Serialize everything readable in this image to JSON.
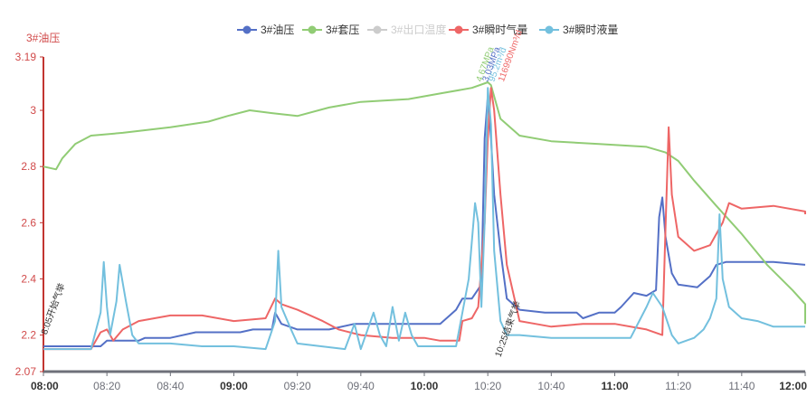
{
  "chart_data": {
    "type": "line",
    "ylabel": "3#油压",
    "ylim": [
      2.07,
      3.19
    ],
    "y_ticks": [
      "3.19",
      "3",
      "2.8",
      "2.6",
      "2.4",
      "2.2",
      "2.07"
    ],
    "x_ticks": [
      "08:00",
      "08:20",
      "08:40",
      "09:00",
      "09:20",
      "09:40",
      "10:00",
      "10:20",
      "10:40",
      "11:00",
      "11:20",
      "11:40",
      "12:00"
    ],
    "x_ticks_bold": [
      "08:00",
      "09:00",
      "10:00",
      "11:00",
      "12:00"
    ],
    "legend_position": "top-center",
    "grid": false,
    "series": [
      {
        "name": "3#油压",
        "color": "#5470c6",
        "enabled": true,
        "points": [
          [
            0,
            2.16
          ],
          [
            10,
            2.16
          ],
          [
            18,
            2.16
          ],
          [
            20,
            2.18
          ],
          [
            30,
            2.18
          ],
          [
            32,
            2.19
          ],
          [
            40,
            2.19
          ],
          [
            48,
            2.21
          ],
          [
            62,
            2.21
          ],
          [
            66,
            2.22
          ],
          [
            72,
            2.22
          ],
          [
            73,
            2.28
          ],
          [
            75,
            2.24
          ],
          [
            80,
            2.22
          ],
          [
            90,
            2.22
          ],
          [
            98,
            2.24
          ],
          [
            105,
            2.24
          ],
          [
            115,
            2.24
          ],
          [
            125,
            2.24
          ],
          [
            128,
            2.27
          ],
          [
            130,
            2.29
          ],
          [
            132,
            2.33
          ],
          [
            135,
            2.33
          ],
          [
            138,
            2.38
          ],
          [
            139,
            2.9
          ],
          [
            140,
            3.05
          ],
          [
            141,
            2.9
          ],
          [
            142,
            2.7
          ],
          [
            144,
            2.5
          ],
          [
            146,
            2.33
          ],
          [
            150,
            2.29
          ],
          [
            158,
            2.28
          ],
          [
            168,
            2.28
          ],
          [
            170,
            2.26
          ],
          [
            175,
            2.28
          ],
          [
            180,
            2.28
          ],
          [
            182,
            2.3
          ],
          [
            186,
            2.35
          ],
          [
            190,
            2.34
          ],
          [
            193,
            2.36
          ],
          [
            194,
            2.62
          ],
          [
            195,
            2.69
          ],
          [
            196,
            2.55
          ],
          [
            198,
            2.42
          ],
          [
            200,
            2.38
          ],
          [
            206,
            2.37
          ],
          [
            208,
            2.39
          ],
          [
            210,
            2.41
          ],
          [
            212,
            2.45
          ],
          [
            215,
            2.46
          ],
          [
            230,
            2.46
          ],
          [
            245,
            2.45
          ],
          [
            250,
            2.45
          ]
        ]
      },
      {
        "name": "3#套压",
        "color": "#91cc75",
        "enabled": true,
        "points": [
          [
            0,
            2.8
          ],
          [
            4,
            2.79
          ],
          [
            6,
            2.83
          ],
          [
            10,
            2.88
          ],
          [
            15,
            2.91
          ],
          [
            25,
            2.92
          ],
          [
            40,
            2.94
          ],
          [
            52,
            2.96
          ],
          [
            58,
            2.98
          ],
          [
            65,
            3.0
          ],
          [
            72,
            2.99
          ],
          [
            80,
            2.98
          ],
          [
            90,
            3.01
          ],
          [
            100,
            3.03
          ],
          [
            115,
            3.04
          ],
          [
            125,
            3.06
          ],
          [
            135,
            3.08
          ],
          [
            140,
            3.1
          ],
          [
            141,
            3.09
          ],
          [
            144,
            2.97
          ],
          [
            150,
            2.91
          ],
          [
            160,
            2.89
          ],
          [
            175,
            2.88
          ],
          [
            190,
            2.87
          ],
          [
            196,
            2.85
          ],
          [
            200,
            2.82
          ],
          [
            205,
            2.75
          ],
          [
            212,
            2.66
          ],
          [
            220,
            2.56
          ],
          [
            228,
            2.45
          ],
          [
            236,
            2.36
          ],
          [
            242,
            2.31
          ],
          [
            248,
            2.25
          ],
          [
            250,
            2.24
          ]
        ]
      },
      {
        "name": "3#出口温度",
        "color": "#cccccc",
        "enabled": false,
        "points": []
      },
      {
        "name": "3#瞬时气量",
        "color": "#ee6666",
        "enabled": true,
        "points": [
          [
            0,
            2.15
          ],
          [
            15,
            2.15
          ],
          [
            18,
            2.21
          ],
          [
            20,
            2.22
          ],
          [
            22,
            2.18
          ],
          [
            25,
            2.22
          ],
          [
            30,
            2.25
          ],
          [
            40,
            2.27
          ],
          [
            50,
            2.27
          ],
          [
            60,
            2.25
          ],
          [
            70,
            2.26
          ],
          [
            73,
            2.33
          ],
          [
            75,
            2.31
          ],
          [
            80,
            2.29
          ],
          [
            88,
            2.25
          ],
          [
            93,
            2.22
          ],
          [
            100,
            2.2
          ],
          [
            110,
            2.19
          ],
          [
            120,
            2.19
          ],
          [
            125,
            2.18
          ],
          [
            131,
            2.18
          ],
          [
            132,
            2.25
          ],
          [
            135,
            2.26
          ],
          [
            137,
            2.3
          ],
          [
            139,
            2.6
          ],
          [
            140,
            2.9
          ],
          [
            141,
            3.08
          ],
          [
            142,
            3.0
          ],
          [
            144,
            2.7
          ],
          [
            146,
            2.45
          ],
          [
            150,
            2.25
          ],
          [
            155,
            2.24
          ],
          [
            160,
            2.23
          ],
          [
            170,
            2.24
          ],
          [
            180,
            2.24
          ],
          [
            190,
            2.22
          ],
          [
            195,
            2.2
          ],
          [
            196,
            2.58
          ],
          [
            197,
            2.94
          ],
          [
            198,
            2.7
          ],
          [
            200,
            2.55
          ],
          [
            205,
            2.5
          ],
          [
            210,
            2.52
          ],
          [
            212,
            2.56
          ],
          [
            214,
            2.6
          ],
          [
            216,
            2.67
          ],
          [
            220,
            2.65
          ],
          [
            230,
            2.66
          ],
          [
            240,
            2.64
          ],
          [
            250,
            2.63
          ]
        ]
      },
      {
        "name": "3#瞬时液量",
        "color": "#73c0de",
        "enabled": true,
        "points": [
          [
            0,
            2.15
          ],
          [
            15,
            2.15
          ],
          [
            18,
            2.28
          ],
          [
            19,
            2.46
          ],
          [
            20,
            2.3
          ],
          [
            21,
            2.2
          ],
          [
            23,
            2.32
          ],
          [
            24,
            2.45
          ],
          [
            26,
            2.32
          ],
          [
            28,
            2.2
          ],
          [
            30,
            2.17
          ],
          [
            40,
            2.17
          ],
          [
            50,
            2.16
          ],
          [
            60,
            2.16
          ],
          [
            70,
            2.15
          ],
          [
            73,
            2.25
          ],
          [
            74,
            2.5
          ],
          [
            75,
            2.3
          ],
          [
            78,
            2.22
          ],
          [
            80,
            2.17
          ],
          [
            95,
            2.15
          ],
          [
            98,
            2.24
          ],
          [
            100,
            2.15
          ],
          [
            104,
            2.28
          ],
          [
            106,
            2.2
          ],
          [
            108,
            2.16
          ],
          [
            110,
            2.3
          ],
          [
            112,
            2.18
          ],
          [
            114,
            2.28
          ],
          [
            116,
            2.2
          ],
          [
            118,
            2.16
          ],
          [
            125,
            2.16
          ],
          [
            130,
            2.16
          ],
          [
            134,
            2.4
          ],
          [
            136,
            2.67
          ],
          [
            137,
            2.6
          ],
          [
            138,
            2.3
          ],
          [
            139,
            2.6
          ],
          [
            140,
            3.08
          ],
          [
            141,
            2.95
          ],
          [
            142,
            2.5
          ],
          [
            144,
            2.25
          ],
          [
            146,
            2.2
          ],
          [
            150,
            2.2
          ],
          [
            160,
            2.19
          ],
          [
            165,
            2.19
          ],
          [
            185,
            2.19
          ],
          [
            190,
            2.3
          ],
          [
            192,
            2.35
          ],
          [
            195,
            2.3
          ],
          [
            198,
            2.2
          ],
          [
            200,
            2.17
          ],
          [
            205,
            2.19
          ],
          [
            208,
            2.22
          ],
          [
            210,
            2.26
          ],
          [
            212,
            2.33
          ],
          [
            213,
            2.63
          ],
          [
            214,
            2.4
          ],
          [
            216,
            2.3
          ],
          [
            220,
            2.26
          ],
          [
            225,
            2.25
          ],
          [
            230,
            2.23
          ],
          [
            240,
            2.23
          ],
          [
            250,
            2.23
          ]
        ]
      }
    ],
    "x_units": "minutes after 08:00",
    "annotations": [
      {
        "text": "8:05开始气举",
        "color": "#333333",
        "at": [
          1,
          2.2
        ],
        "rotate": true
      },
      {
        "text": "4.67MPa",
        "color": "#91cc75",
        "at": [
          138,
          3.1
        ],
        "rotate": true
      },
      {
        "text": "3.03MPa",
        "color": "#5470c6",
        "at": [
          140,
          3.1
        ],
        "rotate": true
      },
      {
        "text": "95.2m³/d",
        "color": "#73c0de",
        "at": [
          142,
          3.1
        ],
        "rotate": true
      },
      {
        "text": "116990Nm³/d",
        "color": "#ee6666",
        "at": [
          145,
          3.1
        ],
        "rotate": true
      },
      {
        "text": "10:25结束气举",
        "color": "#333333",
        "at": [
          144,
          2.12
        ],
        "rotate": true
      }
    ]
  }
}
